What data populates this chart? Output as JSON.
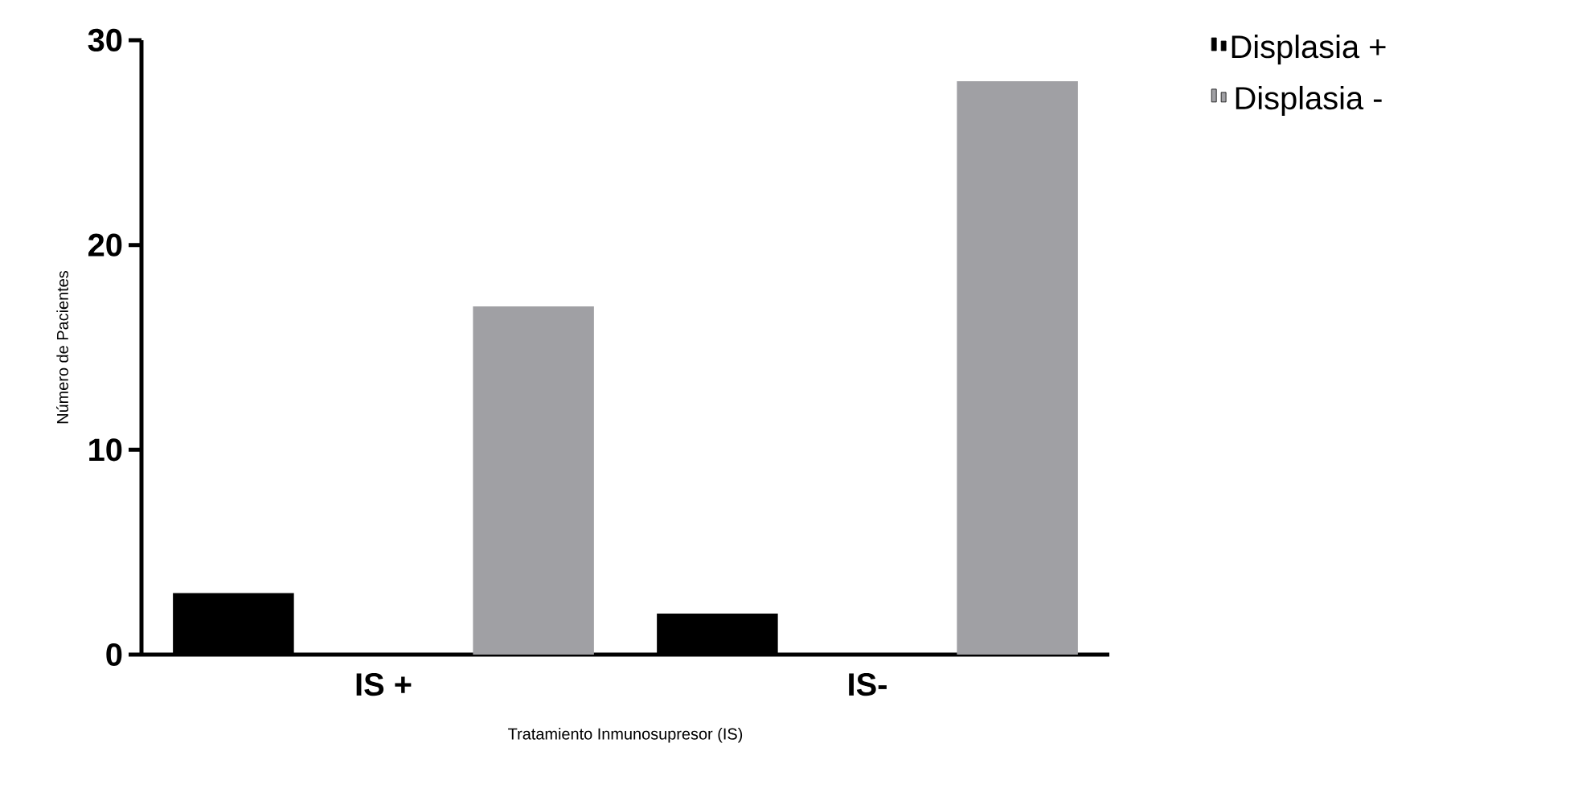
{
  "chart_data": {
    "type": "bar",
    "xlabel": "Tratamiento Inmunosupresor (IS)",
    "ylabel": "Número de Pacientes",
    "categories": [
      "IS +",
      "IS-"
    ],
    "series": [
      {
        "name": "Displasia +",
        "color": "#000000",
        "values": [
          3,
          2
        ]
      },
      {
        "name": "Displasia -",
        "color": "#a0a0a4",
        "values": [
          17,
          28
        ]
      }
    ],
    "ylim": [
      0,
      30
    ],
    "yticks": [
      0,
      10,
      20,
      30
    ],
    "grid": false,
    "legend": "right"
  }
}
